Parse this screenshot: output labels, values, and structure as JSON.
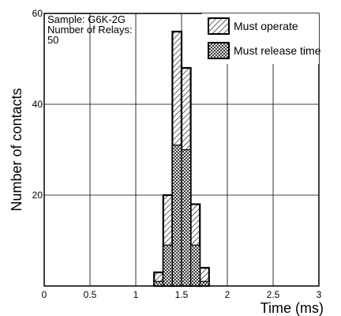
{
  "chart_data": {
    "type": "bar",
    "xlabel": "Time (ms)",
    "ylabel": "Number of contacts",
    "xlim": [
      0,
      3
    ],
    "ylim": [
      0,
      60
    ],
    "x_ticks": [
      "0",
      "0.5",
      "1",
      "1.5",
      "2",
      "2.5",
      "3"
    ],
    "y_ticks": [
      "20",
      "40",
      "60"
    ],
    "grid": true,
    "legend_position": "top-right",
    "annotation_lines": [
      "Sample: G6K-2G",
      "Number of Relays:",
      "50"
    ],
    "bin_edges": [
      1.2,
      1.3,
      1.4,
      1.5,
      1.6,
      1.7,
      1.8
    ],
    "series": [
      {
        "name": "Must operate",
        "pattern": "hatch",
        "values": [
          3,
          20,
          56,
          48,
          18,
          4
        ]
      },
      {
        "name": "Must release time",
        "pattern": "crosshatch",
        "values": [
          1,
          9,
          31,
          30,
          9,
          1
        ]
      }
    ]
  }
}
